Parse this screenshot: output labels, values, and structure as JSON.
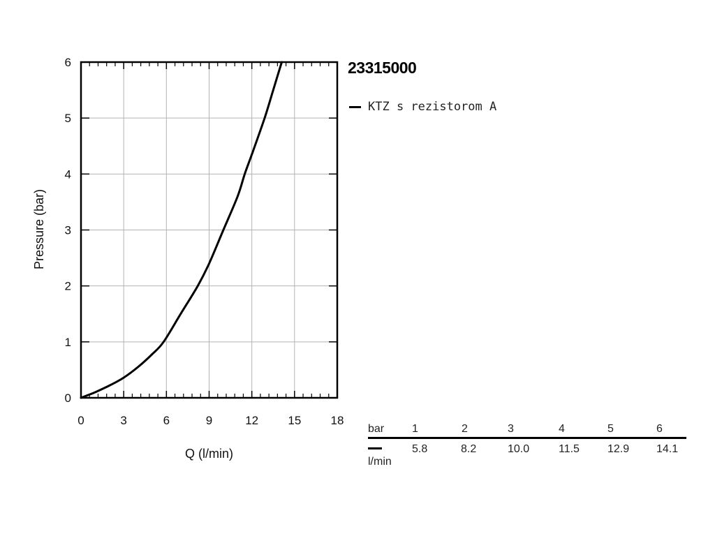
{
  "chart_data": {
    "type": "line",
    "title": "23315000",
    "xlabel": "Q (l/min)",
    "ylabel": "Pressure (bar)",
    "xlim": [
      0,
      18
    ],
    "ylim": [
      0,
      6
    ],
    "xticks": [
      "0",
      "3",
      "6",
      "9",
      "12",
      "15",
      "18"
    ],
    "yticks": [
      "0",
      "1",
      "2",
      "3",
      "4",
      "5",
      "6"
    ],
    "grid": true,
    "legend_position": "right",
    "series": [
      {
        "name": "KTZ s rezistorom A",
        "color": "#000000",
        "x": [
          0,
          0.5,
          1,
          2,
          3,
          4,
          5,
          5.8,
          7,
          8.2,
          9,
          10,
          11,
          11.5,
          12,
          12.9,
          13.5,
          14.1
        ],
        "y": [
          0,
          0.05,
          0.1,
          0.22,
          0.36,
          0.55,
          0.78,
          1,
          1.5,
          2,
          2.4,
          3,
          3.6,
          4,
          4.35,
          5,
          5.5,
          6
        ]
      }
    ]
  },
  "flow_table": {
    "pressure_label": "bar",
    "flow_unit": "l/min",
    "pressures": [
      "1",
      "2",
      "3",
      "4",
      "5",
      "6"
    ],
    "flows": [
      "5.8",
      "8.2",
      "10.0",
      "11.5",
      "12.9",
      "14.1"
    ]
  }
}
